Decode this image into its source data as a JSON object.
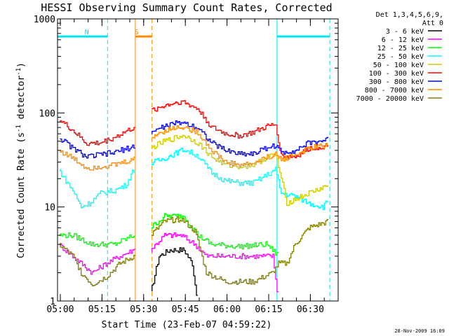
{
  "chart_data": {
    "type": "line",
    "title": "HESSI Observing Summary Count Rates, Corrected",
    "ylabel_parts": [
      "Corrected Count Rate (s",
      "-1",
      " detector",
      "-1",
      ")"
    ],
    "xlabel": "Start Time (23-Feb-07 04:59:22)",
    "y_scale": "log",
    "ylim": [
      1,
      1000
    ],
    "y_ticks": [
      1,
      10,
      100,
      1000
    ],
    "y_tick_labels": [
      "1",
      "10",
      "100",
      "1000"
    ],
    "xlim": [
      "04:59",
      "06:40"
    ],
    "x_ticks": [
      "05:00",
      "05:15",
      "05:30",
      "05:45",
      "06:00",
      "06:15",
      "06:30"
    ],
    "legend_title_lines": [
      "Det 1,3,4,5,6,9,",
      "Att 0"
    ],
    "legend_placement": "right, outside plot",
    "timestamp": "28-Nov-2009 16:09",
    "markers": [
      {
        "type": "night",
        "label": "N",
        "solid": "04:59",
        "dashed": "05:17",
        "color": "#00e5ee"
      },
      {
        "type": "saa",
        "label": "S",
        "solid": "05:27",
        "dashed": "05:33",
        "color": "#ff8c00"
      },
      {
        "type": "night",
        "label": "",
        "solid": "06:18",
        "dashed": "06:37",
        "color": "#00e5ee"
      }
    ],
    "gaps": [
      [
        "05:27",
        "05:33"
      ]
    ],
    "series": [
      {
        "name": "3 - 6 keV",
        "color": "#000000",
        "points": [
          [
            "05:33",
            1.2
          ],
          [
            "05:36",
            3
          ],
          [
            "05:40",
            3.5
          ],
          [
            "05:45",
            3.5
          ],
          [
            "05:48",
            2.5
          ],
          [
            "05:49",
            1.5
          ],
          [
            "05:50",
            1
          ]
        ]
      },
      {
        "name": "6 - 12 keV",
        "color": "#ff00ff",
        "points": [
          [
            "05:00",
            4
          ],
          [
            "05:12",
            2
          ],
          [
            "05:17",
            2.5
          ],
          [
            "05:22",
            3
          ],
          [
            "05:27",
            3.5
          ],
          [
            "05:33",
            3.5
          ],
          [
            "05:38",
            5
          ],
          [
            "05:44",
            5
          ],
          [
            "05:49",
            4
          ],
          [
            "05:53",
            3
          ],
          [
            "06:00",
            3
          ],
          [
            "06:10",
            3
          ],
          [
            "06:17",
            3
          ],
          [
            "06:19",
            1
          ]
        ]
      },
      {
        "name": "12 - 25 keV",
        "color": "#00ff00",
        "points": [
          [
            "05:00",
            5
          ],
          [
            "05:05",
            5
          ],
          [
            "05:12",
            4
          ],
          [
            "05:20",
            4
          ],
          [
            "05:27",
            5
          ],
          [
            "05:33",
            6
          ],
          [
            "05:38",
            8
          ],
          [
            "05:45",
            8
          ],
          [
            "05:50",
            5
          ],
          [
            "05:55",
            4
          ],
          [
            "06:05",
            3.8
          ],
          [
            "06:15",
            4
          ],
          [
            "06:19",
            3
          ]
        ]
      },
      {
        "name": "25 - 50 keV",
        "color": "#00ffff",
        "points": [
          [
            "05:00",
            25
          ],
          [
            "05:02",
            20
          ],
          [
            "05:05",
            15
          ],
          [
            "05:08",
            10
          ],
          [
            "05:11",
            11
          ],
          [
            "05:15",
            14
          ],
          [
            "05:20",
            15
          ],
          [
            "05:24",
            17
          ],
          [
            "05:27",
            25
          ],
          [
            "05:33",
            29
          ],
          [
            "05:38",
            33
          ],
          [
            "05:45",
            41
          ],
          [
            "05:50",
            35
          ],
          [
            "05:55",
            23
          ],
          [
            "06:00",
            19
          ],
          [
            "06:05",
            18
          ],
          [
            "06:10",
            18
          ],
          [
            "06:15",
            22
          ],
          [
            "06:18",
            25
          ],
          [
            "06:20",
            14
          ],
          [
            "06:25",
            13
          ],
          [
            "06:30",
            11
          ],
          [
            "06:35",
            10
          ],
          [
            "06:37",
            12
          ]
        ]
      },
      {
        "name": "50 - 100 keV",
        "color": "#cccc00",
        "points": [
          [
            "05:33",
            42
          ],
          [
            "05:38",
            50
          ],
          [
            "05:45",
            58
          ],
          [
            "05:50",
            48
          ],
          [
            "05:55",
            34
          ],
          [
            "06:00",
            28
          ],
          [
            "06:05",
            27
          ],
          [
            "06:10",
            28
          ],
          [
            "06:15",
            34
          ],
          [
            "06:18",
            36
          ],
          [
            "06:22",
            11
          ],
          [
            "06:25",
            12
          ],
          [
            "06:30",
            14
          ],
          [
            "06:37",
            17
          ]
        ]
      },
      {
        "name": "100 - 300 keV",
        "color": "#ff0000",
        "points": [
          [
            "05:00",
            85
          ],
          [
            "05:05",
            65
          ],
          [
            "05:10",
            47
          ],
          [
            "05:15",
            48
          ],
          [
            "05:20",
            55
          ],
          [
            "05:27",
            70
          ],
          [
            "05:33",
            105
          ],
          [
            "05:38",
            120
          ],
          [
            "05:44",
            133
          ],
          [
            "05:50",
            110
          ],
          [
            "05:55",
            70
          ],
          [
            "06:00",
            60
          ],
          [
            "06:05",
            57
          ],
          [
            "06:10",
            62
          ],
          [
            "06:15",
            72
          ],
          [
            "06:18",
            75
          ],
          [
            "06:20",
            35
          ],
          [
            "06:25",
            34
          ],
          [
            "06:30",
            42
          ],
          [
            "06:37",
            45
          ]
        ]
      },
      {
        "name": "300 - 800 keV",
        "color": "#0000ff",
        "points": [
          [
            "05:00",
            55
          ],
          [
            "05:05",
            42
          ],
          [
            "05:10",
            34
          ],
          [
            "05:15",
            36
          ],
          [
            "05:20",
            38
          ],
          [
            "05:27",
            44
          ],
          [
            "05:33",
            62
          ],
          [
            "05:38",
            72
          ],
          [
            "05:44",
            80
          ],
          [
            "05:50",
            70
          ],
          [
            "05:55",
            48
          ],
          [
            "06:00",
            40
          ],
          [
            "06:05",
            37
          ],
          [
            "06:10",
            37
          ],
          [
            "06:15",
            43
          ],
          [
            "06:18",
            45
          ],
          [
            "06:20",
            38
          ],
          [
            "06:25",
            40
          ],
          [
            "06:30",
            48
          ],
          [
            "06:37",
            52
          ]
        ]
      },
      {
        "name": "800 - 7000 keV",
        "color": "#ff8c00",
        "points": [
          [
            "05:00",
            40
          ],
          [
            "05:05",
            33
          ],
          [
            "05:10",
            26
          ],
          [
            "05:15",
            27
          ],
          [
            "05:20",
            28
          ],
          [
            "05:27",
            32
          ],
          [
            "05:33",
            55
          ],
          [
            "05:38",
            65
          ],
          [
            "05:44",
            72
          ],
          [
            "05:50",
            62
          ],
          [
            "05:55",
            40
          ],
          [
            "06:00",
            30
          ],
          [
            "06:05",
            28
          ],
          [
            "06:10",
            29
          ],
          [
            "06:15",
            34
          ],
          [
            "06:18",
            36
          ],
          [
            "06:20",
            32
          ],
          [
            "06:25",
            36
          ],
          [
            "06:30",
            42
          ],
          [
            "06:37",
            46
          ]
        ]
      },
      {
        "name": "7000 - 20000 keV",
        "color": "#808000",
        "points": [
          [
            "05:00",
            4
          ],
          [
            "05:05",
            3
          ],
          [
            "05:08",
            2
          ],
          [
            "05:12",
            1.5
          ],
          [
            "05:17",
            1.8
          ],
          [
            "05:22",
            2.5
          ],
          [
            "05:27",
            3
          ],
          [
            "05:33",
            5
          ],
          [
            "05:38",
            7
          ],
          [
            "05:44",
            7.5
          ],
          [
            "05:49",
            5.5
          ],
          [
            "05:53",
            2
          ],
          [
            "06:00",
            1.6
          ],
          [
            "06:10",
            1.6
          ],
          [
            "06:17",
            2
          ],
          [
            "06:19",
            2.5
          ],
          [
            "06:22",
            2.5
          ],
          [
            "06:25",
            4
          ],
          [
            "06:30",
            6
          ],
          [
            "06:37",
            7
          ]
        ]
      }
    ]
  }
}
